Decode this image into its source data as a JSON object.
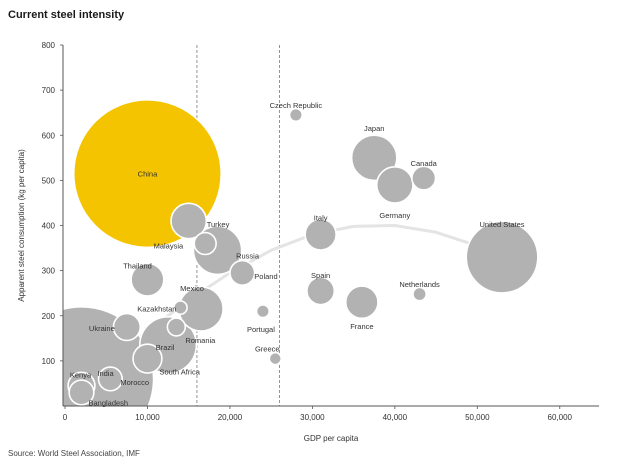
{
  "title": "Current steel intensity",
  "source": "Source: World Steel Association, IMF",
  "chart_data": {
    "type": "scatter",
    "subtype": "bubble",
    "title": "Current steel intensity",
    "xlabel": "GDP per capita",
    "ylabel": "Apparent steel consumption (kg per capita)",
    "xlim": [
      0,
      65000
    ],
    "ylim": [
      0,
      800
    ],
    "xticks": [
      0,
      10000,
      20000,
      30000,
      40000,
      50000,
      60000
    ],
    "xtick_labels": [
      "0",
      "10,000",
      "20,000",
      "30,000",
      "40,000",
      "50,000",
      "60,000"
    ],
    "yticks": [
      100,
      200,
      300,
      400,
      500,
      600,
      700,
      800
    ],
    "ytick_labels": [
      "100",
      "200",
      "300",
      "400",
      "500",
      "600",
      "700",
      "800"
    ],
    "vlines": [
      16000,
      26000
    ],
    "trend": [
      [
        1000,
        20
      ],
      [
        5000,
        95
      ],
      [
        10000,
        165
      ],
      [
        15000,
        235
      ],
      [
        20000,
        295
      ],
      [
        25000,
        345
      ],
      [
        30000,
        380
      ],
      [
        35000,
        398
      ],
      [
        40000,
        400
      ],
      [
        45000,
        385
      ],
      [
        50000,
        355
      ],
      [
        53000,
        330
      ]
    ],
    "colors": {
      "highlight": "#F5C400",
      "bubble": "#B2B2B3",
      "trend": "#E4E4E4",
      "axis": "#555555"
    },
    "points": [
      {
        "name": "China",
        "x": 10000,
        "y": 515,
        "size": 1360,
        "highlight": true
      },
      {
        "name": "India",
        "x": 2000,
        "y": 60,
        "size": 1300
      },
      {
        "name": "Brazil",
        "x": 12500,
        "y": 135,
        "size": 200
      },
      {
        "name": "United States",
        "x": 53000,
        "y": 330,
        "size": 320
      },
      {
        "name": "Russia",
        "x": 18500,
        "y": 345,
        "size": 145
      },
      {
        "name": "Japan",
        "x": 37500,
        "y": 550,
        "size": 128
      },
      {
        "name": "Germany",
        "x": 40000,
        "y": 490,
        "size": 82
      },
      {
        "name": "Mexico",
        "x": 16500,
        "y": 215,
        "size": 122
      },
      {
        "name": "Turkey",
        "x": 15000,
        "y": 410,
        "size": 78
      },
      {
        "name": "Italy",
        "x": 31000,
        "y": 380,
        "size": 60
      },
      {
        "name": "France",
        "x": 36000,
        "y": 230,
        "size": 65
      },
      {
        "name": "Spain",
        "x": 31000,
        "y": 255,
        "size": 47
      },
      {
        "name": "Thailand",
        "x": 10000,
        "y": 280,
        "size": 67
      },
      {
        "name": "Canada",
        "x": 43500,
        "y": 505,
        "size": 35
      },
      {
        "name": "South Africa",
        "x": 10000,
        "y": 105,
        "size": 52
      },
      {
        "name": "Ukraine",
        "x": 7500,
        "y": 175,
        "size": 45
      },
      {
        "name": "Poland",
        "x": 21500,
        "y": 295,
        "size": 38
      },
      {
        "name": "Malaysia",
        "x": 17000,
        "y": 360,
        "size": 30
      },
      {
        "name": "Romania",
        "x": 13500,
        "y": 175,
        "size": 20
      },
      {
        "name": "Morocco",
        "x": 5500,
        "y": 60,
        "size": 35
      },
      {
        "name": "Kenya",
        "x": 2000,
        "y": 45,
        "size": 45
      },
      {
        "name": "Bangladesh",
        "x": 2000,
        "y": 30,
        "size": 38
      },
      {
        "name": "Kazakhstan",
        "x": 14000,
        "y": 218,
        "size": 11
      },
      {
        "name": "Czech Republic",
        "x": 28000,
        "y": 645,
        "size": 10
      },
      {
        "name": "Netherlands",
        "x": 43000,
        "y": 248,
        "size": 11
      },
      {
        "name": "Portugal",
        "x": 24000,
        "y": 210,
        "size": 10
      },
      {
        "name": "Greece",
        "x": 25500,
        "y": 105,
        "size": 9
      }
    ]
  }
}
